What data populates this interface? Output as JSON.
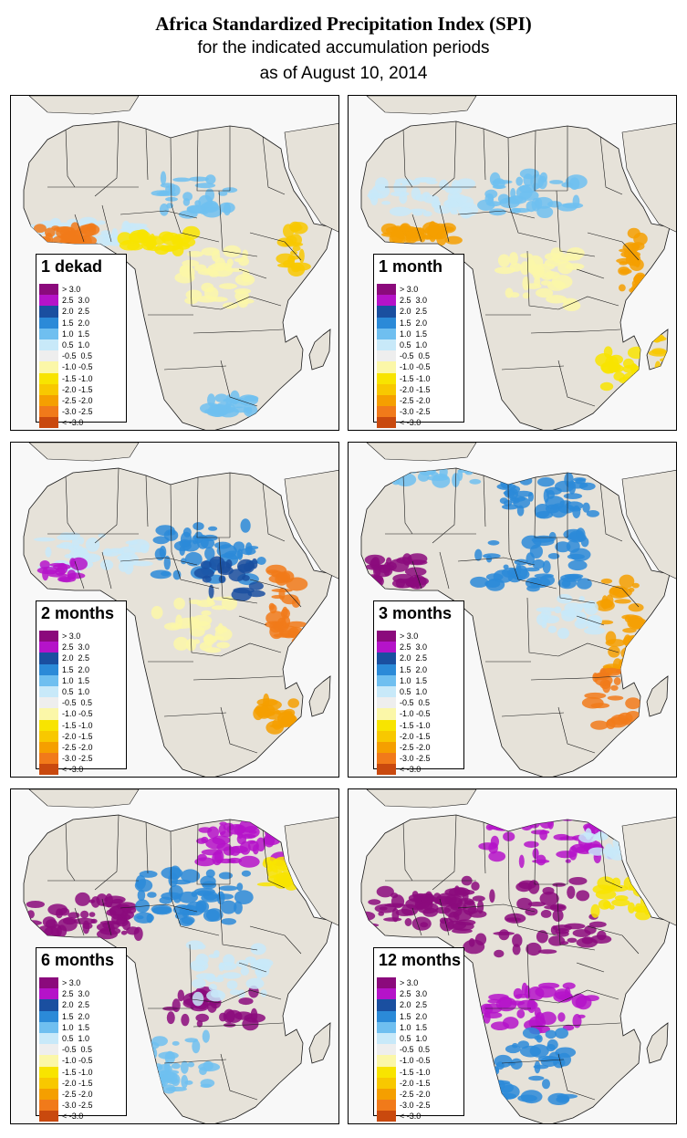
{
  "title": {
    "line1": "Africa Standardized Precipitation Index (SPI)",
    "line2": "for the indicated accumulation periods",
    "line3": "as of August 10, 2014"
  },
  "colors": {
    "land": "#e6e2d9",
    "ocean": "#f8f8f8",
    "border": "#1a1a1a"
  },
  "legend": {
    "entries": [
      {
        "label": "> 3.0",
        "color": "#8b0a7c"
      },
      {
        "label": "2.5  3.0",
        "color": "#b513c9"
      },
      {
        "label": "2.0  2.5",
        "color": "#1a4fa0"
      },
      {
        "label": "1.5  2.0",
        "color": "#2b8ad8"
      },
      {
        "label": "1.0  1.5",
        "color": "#6fbff0"
      },
      {
        "label": "0.5  1.0",
        "color": "#c8e9f9"
      },
      {
        "label": "-0.5  0.5",
        "color": "#eeeeee"
      },
      {
        "label": "-1.0 -0.5",
        "color": "#fbf7a8"
      },
      {
        "label": "-1.5 -1.0",
        "color": "#f8e400"
      },
      {
        "label": "-2.0 -1.5",
        "color": "#f8c800"
      },
      {
        "label": "-2.5 -2.0",
        "color": "#f59f00"
      },
      {
        "label": "-3.0 -2.5",
        "color": "#f17a1a"
      },
      {
        "label": "< -3.0",
        "color": "#c9490e"
      }
    ]
  },
  "panels": [
    {
      "label": "1 dekad"
    },
    {
      "label": "1 month"
    },
    {
      "label": "2 months"
    },
    {
      "label": "3 months"
    },
    {
      "label": "6 months"
    },
    {
      "label": "12 months"
    }
  ]
}
